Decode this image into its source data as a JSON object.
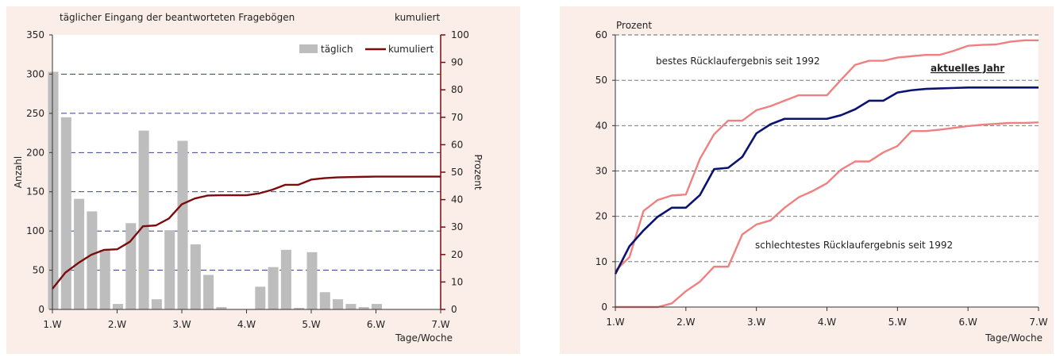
{
  "chart_data": [
    {
      "type": "bar",
      "title": "täglicher Eingang der beantworteten Fragebögen",
      "secondary_title": "kumuliert",
      "ylabel": "Anzahl",
      "y2label": "Prozent",
      "xlabel": "Tage/Woche",
      "ylim": [
        0,
        350
      ],
      "y2lim": [
        0,
        100
      ],
      "yticks": [
        0,
        50,
        100,
        150,
        200,
        250,
        300,
        350
      ],
      "y2ticks": [
        0,
        10,
        20,
        30,
        40,
        50,
        60,
        70,
        80,
        90,
        100
      ],
      "xlim": [
        1,
        7
      ],
      "xticks": [
        1,
        2,
        3,
        4,
        5,
        6,
        7
      ],
      "xtick_labels": [
        "1.W",
        "2.W",
        "3.W",
        "4.W",
        "5.W",
        "6.W",
        "7.W"
      ],
      "grid": "horizontal dashed",
      "legend": "top-right",
      "bar_color": "#bdbdbd",
      "line_color": "#7b0c0c",
      "series": [
        {
          "name": "täglich",
          "axis": "left",
          "x": [
            1.0,
            1.2,
            1.4,
            1.6,
            1.8,
            2.0,
            2.2,
            2.4,
            2.6,
            2.8,
            3.0,
            3.2,
            3.4,
            3.6,
            3.8,
            4.0,
            4.2,
            4.4,
            4.6,
            4.8,
            5.0,
            5.2,
            5.4,
            5.6,
            5.8,
            6.0,
            6.2,
            6.4,
            6.6,
            6.8,
            7.0
          ],
          "values": [
            303,
            245,
            141,
            125,
            76,
            7,
            110,
            228,
            13,
            101,
            215,
            83,
            44,
            3,
            0,
            0,
            29,
            54,
            76,
            2,
            73,
            22,
            13,
            7,
            3,
            7,
            0,
            0,
            0,
            0,
            0
          ]
        },
        {
          "name": "kumuliert",
          "axis": "right",
          "x": [
            1.0,
            1.2,
            1.4,
            1.6,
            1.8,
            2.0,
            2.2,
            2.4,
            2.6,
            2.8,
            3.0,
            3.2,
            3.4,
            3.6,
            3.8,
            4.0,
            4.2,
            4.4,
            4.6,
            4.8,
            5.0,
            5.2,
            5.4,
            5.6,
            5.8,
            6.0,
            6.2,
            6.4,
            6.6,
            6.8,
            7.0
          ],
          "values": [
            7.5,
            13.4,
            16.9,
            19.9,
            21.7,
            21.9,
            24.7,
            30.3,
            30.6,
            33.1,
            38.3,
            40.4,
            41.5,
            41.6,
            41.6,
            41.6,
            42.3,
            43.6,
            45.4,
            45.4,
            47.3,
            47.8,
            48.1,
            48.2,
            48.3,
            48.4,
            48.4,
            48.4,
            48.4,
            48.4,
            48.4
          ]
        }
      ]
    },
    {
      "type": "line",
      "ylabel": "Prozent",
      "xlabel": "Tage/Woche",
      "ylim": [
        0,
        60
      ],
      "yticks": [
        0,
        10,
        20,
        30,
        40,
        50,
        60
      ],
      "xlim": [
        1,
        7
      ],
      "xticks": [
        1,
        2,
        3,
        4,
        5,
        6,
        7
      ],
      "xtick_labels": [
        "1.W",
        "2.W",
        "3.W",
        "4.W",
        "5.W",
        "6.W",
        "7.W"
      ],
      "grid": "horizontal dashed",
      "annotations": {
        "best": "bestes Rücklaufergebnis seit 1992",
        "current": "aktuelles Jahr",
        "worst": "schlechtestes Rücklaufergebnis seit 1992"
      },
      "series": [
        {
          "key": "best",
          "color": "#f08080",
          "x": [
            1.0,
            1.2,
            1.4,
            1.6,
            1.8,
            2.0,
            2.2,
            2.4,
            2.6,
            2.8,
            3.0,
            3.2,
            3.4,
            3.6,
            3.8,
            4.0,
            4.2,
            4.4,
            4.6,
            4.8,
            5.0,
            5.2,
            5.4,
            5.6,
            5.8,
            6.0,
            6.2,
            6.4,
            6.6,
            6.8,
            7.0
          ],
          "values": [
            8,
            11,
            21.2,
            23.6,
            24.6,
            24.8,
            32.7,
            38.1,
            41.1,
            41.1,
            43.4,
            44.3,
            45.5,
            46.7,
            46.7,
            46.7,
            50.1,
            53.4,
            54.3,
            54.3,
            55,
            55.3,
            55.6,
            55.6,
            56.5,
            57.6,
            57.8,
            57.9,
            58.5,
            58.8,
            58.8
          ]
        },
        {
          "key": "current",
          "color": "#0b1370",
          "x": [
            1.0,
            1.2,
            1.4,
            1.6,
            1.8,
            2.0,
            2.2,
            2.4,
            2.6,
            2.8,
            3.0,
            3.2,
            3.4,
            3.6,
            3.8,
            4.0,
            4.2,
            4.4,
            4.6,
            4.8,
            5.0,
            5.2,
            5.4,
            5.6,
            5.8,
            6.0,
            6.2,
            6.4,
            6.6,
            6.8,
            7.0
          ],
          "values": [
            7.3,
            13.4,
            16.9,
            19.9,
            21.9,
            21.9,
            24.7,
            30.4,
            30.7,
            33.1,
            38.3,
            40.3,
            41.5,
            41.5,
            41.5,
            41.5,
            42.3,
            43.6,
            45.5,
            45.5,
            47.3,
            47.8,
            48.1,
            48.2,
            48.3,
            48.4,
            48.4,
            48.4,
            48.4,
            48.4,
            48.4
          ]
        },
        {
          "key": "worst",
          "color": "#f08080",
          "x": [
            1.0,
            1.2,
            1.4,
            1.6,
            1.8,
            2.0,
            2.2,
            2.4,
            2.6,
            2.8,
            3.0,
            3.2,
            3.4,
            3.6,
            3.8,
            4.0,
            4.2,
            4.4,
            4.6,
            4.8,
            5.0,
            5.2,
            5.4,
            5.6,
            5.8,
            6.0,
            6.2,
            6.4,
            6.6,
            6.8,
            7.0
          ],
          "values": [
            0,
            0,
            0,
            0,
            0.8,
            3.5,
            5.6,
            8.9,
            8.9,
            16,
            18.2,
            19.1,
            21.9,
            24.2,
            25.6,
            27.3,
            30.3,
            32.1,
            32.1,
            34.1,
            35.5,
            38.8,
            38.8,
            39.1,
            39.5,
            39.9,
            40.2,
            40.4,
            40.6,
            40.6,
            40.7
          ]
        }
      ]
    }
  ]
}
